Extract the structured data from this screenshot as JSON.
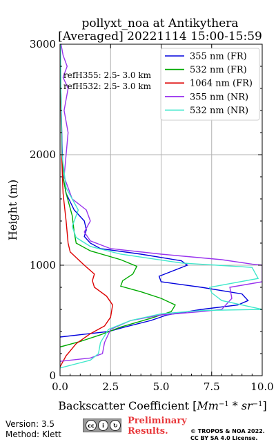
{
  "chart_data": {
    "type": "line",
    "title": [
      "pollyxt_noa at Antikythera",
      "[Averaged] 20221114 15:00-15:59"
    ],
    "xlabel": "Backscatter Coefficient [Mm^-1 * sr^-1]",
    "ylabel": "Height (m)",
    "xlim": [
      0,
      10
    ],
    "ylim": [
      0,
      3000
    ],
    "xticks": [
      "0.0",
      "2.5",
      "5.0",
      "7.5",
      "10.0"
    ],
    "yticks": [
      "0",
      "1000",
      "2000",
      "3000"
    ],
    "grid": true,
    "legend_position": "top-right",
    "annotations": [
      "refH355:  2.5- 3.0 km",
      "refH532:  2.5- 3.0 km"
    ],
    "series": [
      {
        "name": "355 nm (FR)",
        "color": "#0000dd",
        "x": [
          0.0,
          2.4,
          3.2,
          4.5,
          5.3,
          7.0,
          8.8,
          9.3,
          9.0,
          7.0,
          5.0,
          4.9,
          5.6,
          6.3,
          6.0,
          4.0,
          2.0,
          1.5,
          1.2,
          1.3,
          1.2,
          0.7,
          0.3,
          0.15,
          0.1,
          0.05,
          0.0
        ],
        "y": [
          350,
          400,
          440,
          500,
          550,
          600,
          640,
          680,
          740,
          800,
          850,
          900,
          950,
          1000,
          1040,
          1100,
          1150,
          1200,
          1260,
          1320,
          1400,
          1500,
          1650,
          1800,
          2100,
          2500,
          3000
        ]
      },
      {
        "name": "532 nm (FR)",
        "color": "#00aa00",
        "x": [
          0.0,
          1.0,
          2.0,
          3.0,
          4.5,
          5.5,
          5.7,
          5.0,
          4.0,
          3.0,
          3.1,
          3.6,
          3.8,
          3.0,
          1.5,
          0.8,
          0.7,
          0.6,
          0.3,
          0.15,
          0.08,
          0.05,
          0.0
        ],
        "y": [
          260,
          310,
          370,
          440,
          520,
          580,
          640,
          700,
          760,
          810,
          860,
          920,
          990,
          1050,
          1130,
          1200,
          1300,
          1450,
          1650,
          1800,
          2100,
          2500,
          3000
        ]
      },
      {
        "name": "1064 nm (FR)",
        "color": "#dd0000",
        "x": [
          0.0,
          0.3,
          0.8,
          1.5,
          2.2,
          2.5,
          2.6,
          2.3,
          1.7,
          1.6,
          1.7,
          1.2,
          0.5,
          0.4,
          0.3,
          0.15,
          0.08,
          0.0
        ],
        "y": [
          80,
          180,
          290,
          380,
          450,
          530,
          640,
          720,
          800,
          860,
          920,
          1000,
          1120,
          1200,
          1400,
          1650,
          2000,
          3000
        ]
      },
      {
        "name": "355 nm (NR)",
        "color": "#9933ee",
        "x": [
          0.0,
          1.5,
          2.1,
          2.2,
          2.5,
          3.5,
          5.0,
          7.0,
          8.0,
          8.5,
          8.4,
          10.0,
          10.0,
          9.5,
          8.0,
          5.0,
          2.5,
          1.5,
          1.2,
          1.5,
          1.3,
          0.6,
          0.2,
          0.3,
          0.4,
          0.2,
          0.4,
          0.15,
          0.35,
          0.15,
          0.05
        ],
        "y": [
          130,
          160,
          200,
          300,
          420,
          500,
          550,
          580,
          600,
          700,
          800,
          850,
          1000,
          1010,
          1050,
          1100,
          1150,
          1220,
          1300,
          1400,
          1500,
          1600,
          1800,
          2000,
          2200,
          2400,
          2600,
          2700,
          2800,
          2900,
          3000
        ]
      },
      {
        "name": "532 nm (NR)",
        "color": "#40e8cc",
        "x": [
          0.0,
          1.5,
          1.9,
          2.0,
          2.4,
          3.5,
          5.0,
          7.0,
          10.0,
          8.0,
          7.5,
          7.4,
          9.8,
          9.5,
          6.0,
          3.0,
          1.5,
          0.8,
          0.6,
          0.9,
          0.3,
          0.1,
          0.05,
          0.02
        ],
        "y": [
          70,
          140,
          200,
          300,
          420,
          500,
          560,
          590,
          600,
          680,
          750,
          800,
          880,
          980,
          1020,
          1100,
          1170,
          1250,
          1350,
          1500,
          1700,
          2000,
          2500,
          3000
        ]
      }
    ]
  },
  "footer": {
    "version": "Version: 3.5",
    "method": "Method: Klett",
    "preliminary_line1": "Preliminary",
    "preliminary_line2": "Results.",
    "copyright_line1": "© TROPOS & NOA 2022.",
    "copyright_line2": "CC BY SA 4.0 License.",
    "cc_badge_text": "BY SA"
  },
  "colors": {
    "preliminary": "#e8373a",
    "grid": "#b0b0b0",
    "legend_border": "#cccccc"
  }
}
